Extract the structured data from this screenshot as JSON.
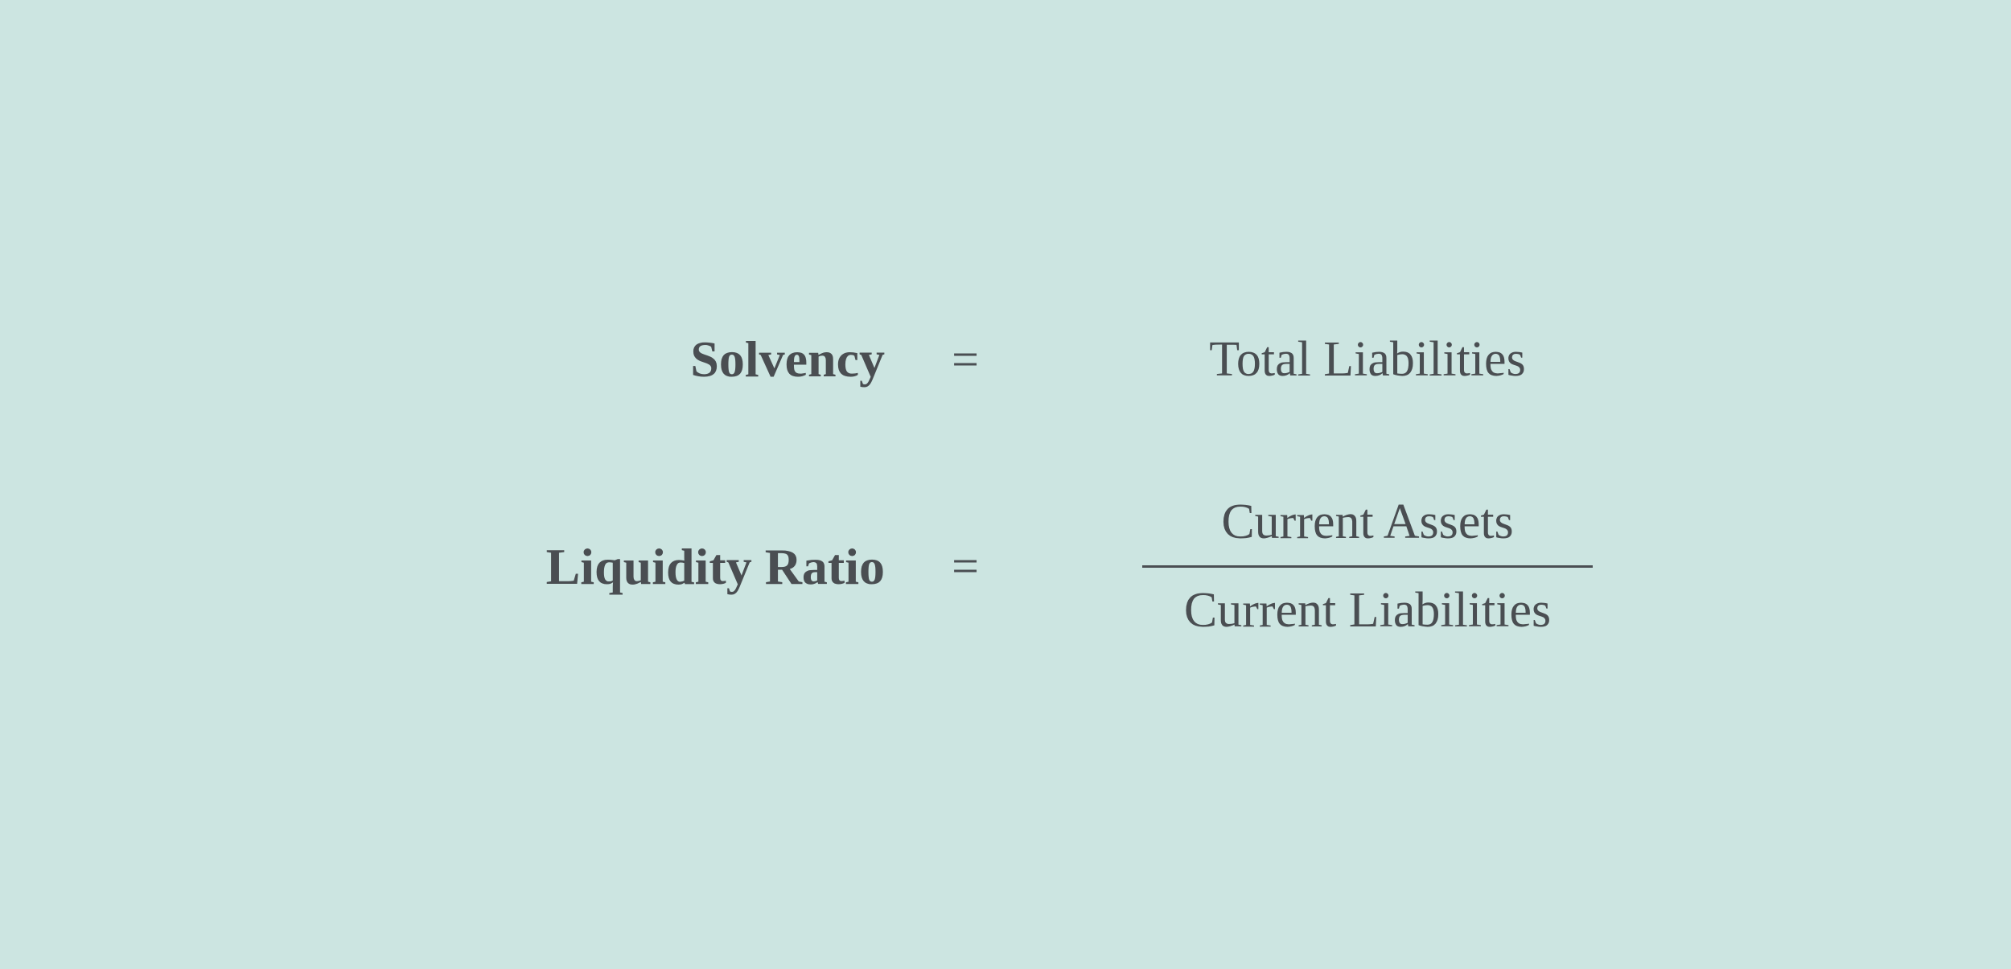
{
  "colors": {
    "background": "#cce5e1",
    "text": "#4a4e52",
    "fraction_bar": "#4a4e52"
  },
  "typography": {
    "label_fontsize": 64,
    "value_fontsize": 62,
    "equals_fontsize": 60,
    "font_family": "Georgia, serif"
  },
  "formulas": [
    {
      "label": "Solvency",
      "equals": "=",
      "type": "single",
      "value": "Total Liabilities"
    },
    {
      "label": "Liquidity Ratio",
      "equals": "=",
      "type": "fraction",
      "numerator": "Current Assets",
      "denominator": "Current Liabilities"
    }
  ]
}
